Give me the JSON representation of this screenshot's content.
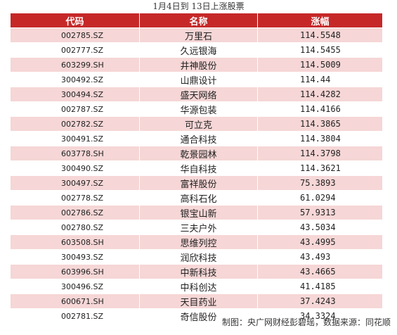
{
  "title": "1月4日到 13日上涨股票",
  "table": {
    "headers": [
      "代码",
      "名称",
      "涨幅"
    ],
    "rows": [
      {
        "code": "002785.SZ",
        "name": "万里石",
        "change": "114.5548"
      },
      {
        "code": "002777.SZ",
        "name": "久远银海",
        "change": "114.5455"
      },
      {
        "code": "603299.SH",
        "name": "井神股份",
        "change": "114.5009"
      },
      {
        "code": "300492.SZ",
        "name": "山鼎设计",
        "change": "114.44"
      },
      {
        "code": "300494.SZ",
        "name": "盛天网络",
        "change": "114.4282"
      },
      {
        "code": "002787.SZ",
        "name": "华源包装",
        "change": "114.4166"
      },
      {
        "code": "002782.SZ",
        "name": "可立克",
        "change": "114.3865"
      },
      {
        "code": "300491.SZ",
        "name": "通合科技",
        "change": "114.3804"
      },
      {
        "code": "603778.SH",
        "name": "乾景园林",
        "change": "114.3798"
      },
      {
        "code": "300490.SZ",
        "name": "华自科技",
        "change": "114.3621"
      },
      {
        "code": "300497.SZ",
        "name": "富祥股份",
        "change": "75.3893"
      },
      {
        "code": "002778.SZ",
        "name": "高科石化",
        "change": "61.0294"
      },
      {
        "code": "002786.SZ",
        "name": "银宝山新",
        "change": "57.9313"
      },
      {
        "code": "002780.SZ",
        "name": "三夫户外",
        "change": "43.5034"
      },
      {
        "code": "603508.SH",
        "name": "思维列控",
        "change": "43.4995"
      },
      {
        "code": "300493.SZ",
        "name": "润欣科技",
        "change": "43.493"
      },
      {
        "code": "603996.SH",
        "name": "中新科技",
        "change": "43.4665"
      },
      {
        "code": "300496.SZ",
        "name": "中科创达",
        "change": "41.4185"
      },
      {
        "code": "600671.SH",
        "name": "天目药业",
        "change": "37.4243"
      },
      {
        "code": "002781.SZ",
        "name": "奇信股份",
        "change": "34.3324"
      }
    ]
  },
  "footer": "制图：央广网财经彭碧瑶，数据来源：同花顺",
  "colors": {
    "header": "#c62828",
    "stripe": "#f6d6d6"
  }
}
